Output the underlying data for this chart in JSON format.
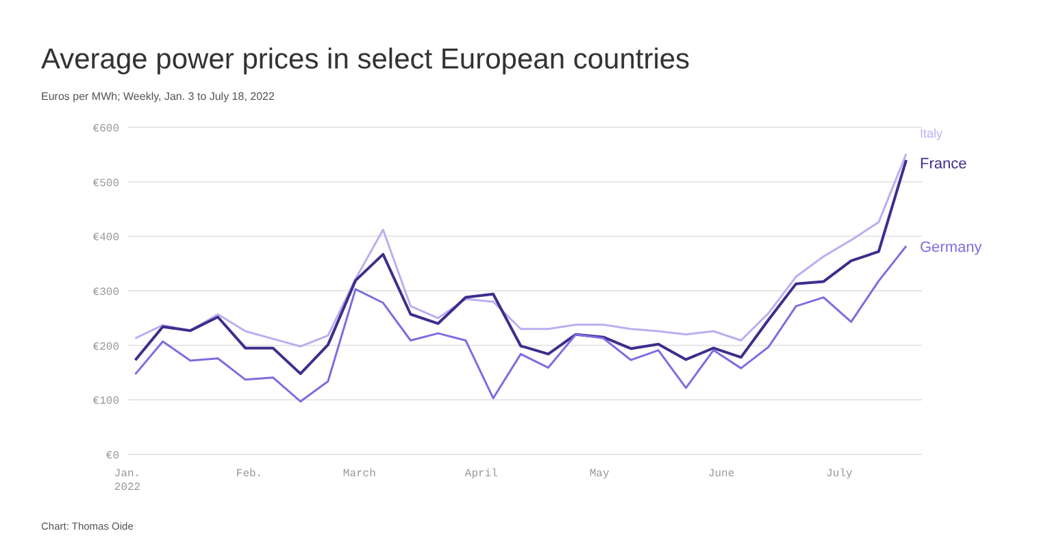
{
  "chart_data": {
    "type": "line",
    "title": "Average power prices in select European countries",
    "subtitle": "Euros per MWh; Weekly, Jan. 3 to July 18, 2022",
    "annotations": [
      "Chart: Thomas Oide"
    ],
    "x": [
      "2022-01-03",
      "2022-01-10",
      "2022-01-17",
      "2022-01-24",
      "2022-01-31",
      "2022-02-07",
      "2022-02-14",
      "2022-02-21",
      "2022-02-28",
      "2022-03-07",
      "2022-03-14",
      "2022-03-21",
      "2022-03-28",
      "2022-04-04",
      "2022-04-11",
      "2022-04-18",
      "2022-04-25",
      "2022-05-02",
      "2022-05-09",
      "2022-05-16",
      "2022-05-23",
      "2022-05-30",
      "2022-06-06",
      "2022-06-13",
      "2022-06-20",
      "2022-06-27",
      "2022-07-04",
      "2022-07-11",
      "2022-07-18"
    ],
    "series": [
      {
        "name": "Italy",
        "color": "#b7b0f0",
        "values": [
          213,
          237,
          227,
          257,
          226,
          212,
          198,
          218,
          322,
          412,
          272,
          250,
          285,
          280,
          230,
          230,
          238,
          238,
          230,
          226,
          220,
          226,
          209,
          259,
          326,
          363,
          393,
          426,
          551
        ]
      },
      {
        "name": "France",
        "color": "#3d2e8c",
        "values": [
          173,
          234,
          227,
          252,
          195,
          195,
          148,
          201,
          319,
          367,
          257,
          240,
          288,
          294,
          199,
          184,
          220,
          215,
          194,
          202,
          174,
          195,
          178,
          247,
          313,
          317,
          355,
          372,
          540
        ]
      },
      {
        "name": "Germany",
        "color": "#7b6ee0",
        "values": [
          147,
          207,
          172,
          176,
          137,
          141,
          97,
          134,
          303,
          278,
          209,
          222,
          209,
          103,
          184,
          159,
          220,
          213,
          173,
          191,
          122,
          191,
          158,
          197,
          272,
          288,
          243,
          318,
          382
        ]
      }
    ],
    "xlim": [
      "2022-01-01",
      "2022-07-22"
    ],
    "xticks": [
      {
        "value": "2022-01-01",
        "label": "Jan.\n2022"
      },
      {
        "value": "2022-02-01",
        "label": "Feb."
      },
      {
        "value": "2022-03-01",
        "label": "March"
      },
      {
        "value": "2022-04-01",
        "label": "April"
      },
      {
        "value": "2022-05-01",
        "label": "May"
      },
      {
        "value": "2022-06-01",
        "label": "June"
      },
      {
        "value": "2022-07-01",
        "label": "July"
      }
    ],
    "ylim": [
      0,
      600
    ],
    "yticks": [
      {
        "value": 0,
        "label": "€0"
      },
      {
        "value": 100,
        "label": "€100"
      },
      {
        "value": 200,
        "label": "€200"
      },
      {
        "value": 300,
        "label": "€300"
      },
      {
        "value": 400,
        "label": "€400"
      },
      {
        "value": 500,
        "label": "€500"
      },
      {
        "value": 600,
        "label": "€600"
      }
    ],
    "grid": "y",
    "line_style": "solid",
    "marker": "none"
  }
}
